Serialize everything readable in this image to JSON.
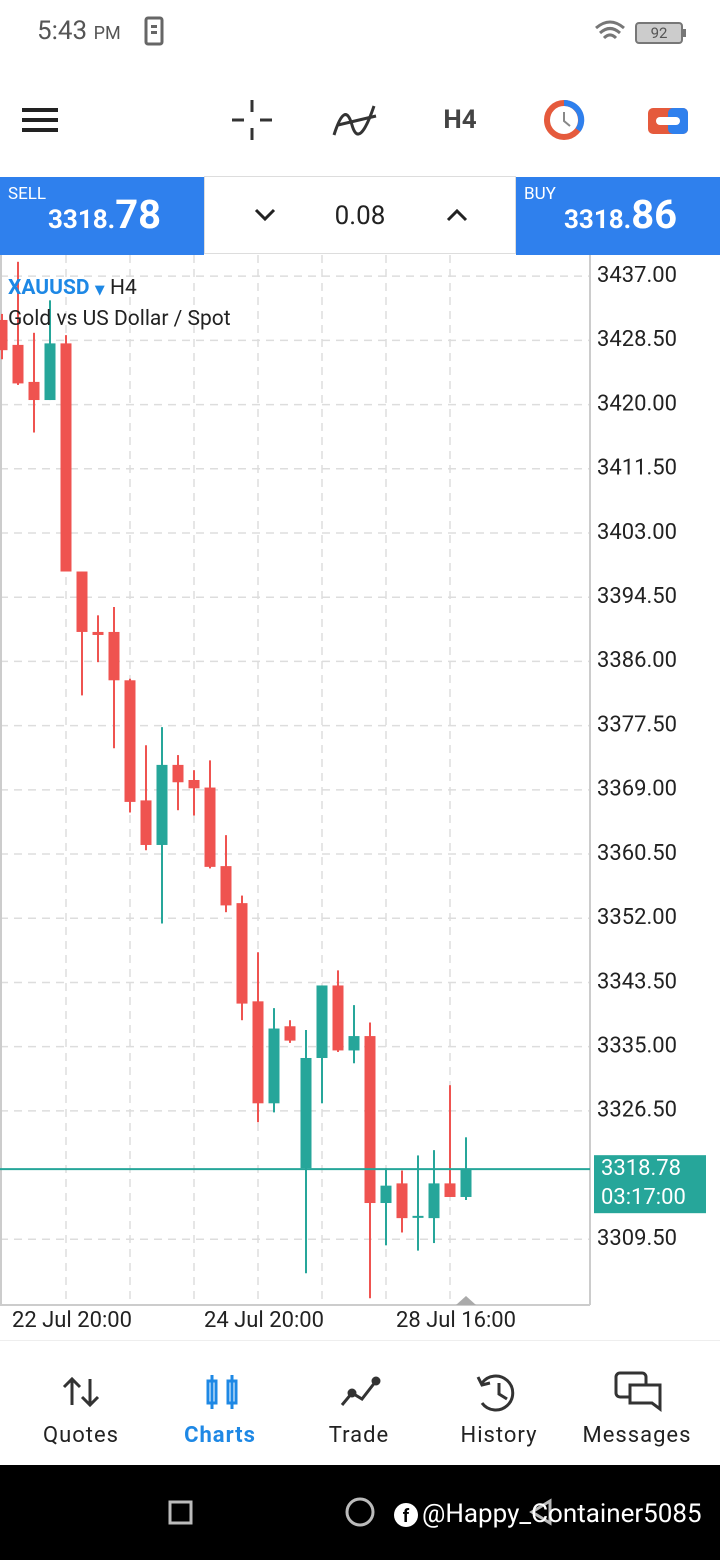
{
  "status_bar": {
    "time": "5:43",
    "period": "PM",
    "battery": "92"
  },
  "toolbar": {
    "timeframe": "H4"
  },
  "trade_panel": {
    "sell": {
      "label": "SELL",
      "price_main": "3318.",
      "price_big": "78"
    },
    "volume": "0.08",
    "buy": {
      "label": "BUY",
      "price_main": "3318.",
      "price_big": "86"
    }
  },
  "chart_data": {
    "type": "candlestick",
    "symbol": "XAUUSD",
    "timeframe": "H4",
    "description": "Gold vs US Dollar / Spot",
    "categories": [
      null,
      null,
      null,
      null,
      "22 Jul 20:00",
      null,
      null,
      null,
      null,
      null,
      null,
      null,
      null,
      null,
      null,
      null,
      "24 Jul 20:00",
      null,
      null,
      null,
      null,
      null,
      null,
      null,
      null,
      null,
      null,
      null,
      "28 Jul 16:00",
      null
    ],
    "open": [
      3431.2,
      3427.9,
      3423.0,
      3420.6,
      3428.1,
      3397.9,
      3389.9,
      3389.9,
      3383.5,
      3367.6,
      3361.7,
      3372.3,
      3370.3,
      3369.3,
      3358.9,
      3354.0,
      3341.0,
      3327.5,
      3337.7,
      3318.9,
      3333.5,
      3343.1,
      3334.5,
      3336.4,
      3314.3,
      3316.9,
      3312.5,
      3312.3,
      3316.9,
      3315.1
    ],
    "high": [
      3432.0,
      3438.9,
      3429.5,
      3433.8,
      3429.2,
      3397.9,
      3392.1,
      3393.2,
      3383.7,
      3374.9,
      3377.3,
      3373.6,
      3371.6,
      3372.9,
      3363.0,
      3355.0,
      3347.5,
      3340.1,
      3338.5,
      3337.2,
      3343.1,
      3345.1,
      3340.5,
      3338.2,
      3318.9,
      3318.6,
      3320.6,
      3321.3,
      3329.9,
      3323.0
    ],
    "low": [
      3426.0,
      3422.6,
      3416.3,
      3420.6,
      3397.9,
      3381.5,
      3385.9,
      3374.5,
      3366.0,
      3361.0,
      3351.3,
      3366.3,
      3365.6,
      3358.6,
      3352.8,
      3338.5,
      3325.0,
      3326.3,
      3335.5,
      3305.0,
      3327.5,
      3334.3,
      3332.8,
      3301.7,
      3308.7,
      3310.4,
      3308.0,
      3309.0,
      3315.1,
      3314.7
    ],
    "close": [
      3427.2,
      3422.8,
      3420.6,
      3428.1,
      3397.9,
      3389.9,
      3389.5,
      3383.5,
      3367.4,
      3361.7,
      3372.3,
      3370.0,
      3369.2,
      3358.8,
      3353.7,
      3340.7,
      3327.5,
      3337.4,
      3335.8,
      3333.5,
      3343.1,
      3334.5,
      3336.4,
      3314.3,
      3316.6,
      3312.3,
      3312.6,
      3316.9,
      3315.1,
      3318.7
    ],
    "up_color": "#26a69a",
    "down_color": "#ef5350",
    "ylim": [
      3300.8,
      3439.8
    ],
    "yticks": [
      {
        "value": 3437,
        "label": "3437.00"
      },
      {
        "value": 3428.5,
        "label": "3428.50"
      },
      {
        "value": 3420,
        "label": "3420.00"
      },
      {
        "value": 3411.5,
        "label": "3411.50"
      },
      {
        "value": 3403,
        "label": "3403.00"
      },
      {
        "value": 3394.5,
        "label": "3394.50"
      },
      {
        "value": 3386,
        "label": "3386.00"
      },
      {
        "value": 3377.5,
        "label": "3377.50"
      },
      {
        "value": 3369,
        "label": "3369.00"
      },
      {
        "value": 3360.5,
        "label": "3360.50"
      },
      {
        "value": 3352,
        "label": "3352.00"
      },
      {
        "value": 3343.5,
        "label": "3343.50"
      },
      {
        "value": 3335,
        "label": "3335.00"
      },
      {
        "value": 3326.5,
        "label": "3326.50"
      },
      {
        "value": 3309.5,
        "label": "3309.50"
      }
    ],
    "grid": true,
    "current_price": 3318.78,
    "countdown": "03:17:00"
  },
  "nav": [
    "Quotes",
    "Charts",
    "Trade",
    "History",
    "Messages"
  ],
  "watermark": "@Happy_Container5085"
}
